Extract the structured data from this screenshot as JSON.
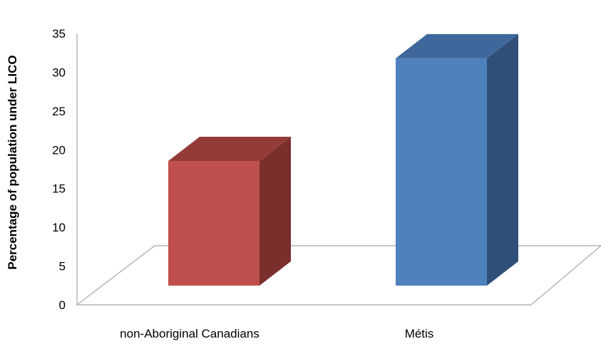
{
  "chart_data": {
    "type": "bar",
    "title": "",
    "xlabel": "",
    "ylabel": "Percentage  of population under LICO",
    "categories": [
      "non-Aboriginal Canadians",
      "Métis"
    ],
    "values": [
      17,
      31
    ],
    "ylim": [
      0,
      35
    ],
    "yticks": [
      "0",
      "5",
      "10",
      "15",
      "20",
      "25",
      "30",
      "35"
    ],
    "grid": false,
    "legend": "none",
    "three_d": true,
    "colors": {
      "non-Aboriginal Canadians": {
        "front": "#C0504D",
        "side": "#7B2F2D",
        "top": "#943B39"
      },
      "Métis": {
        "front": "#4F81BD",
        "side": "#2F4F78",
        "top": "#3E689B"
      }
    },
    "floor_color": "#A6A6A6",
    "axis_color": "#A6A6A6"
  }
}
